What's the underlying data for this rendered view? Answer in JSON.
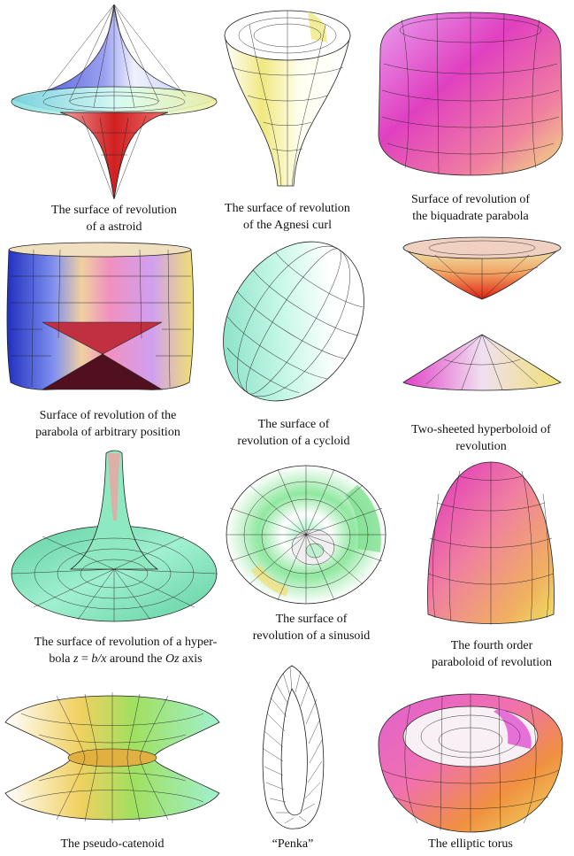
{
  "captions": {
    "astroid": {
      "line1": "The surface of revolution",
      "line2": "of a astroid"
    },
    "agnesi": {
      "line1": "The surface of revolution",
      "line2": "of the Agnesi curl"
    },
    "biquad": {
      "line1": "Surface of revolution of",
      "line2": "the biquadrate parabola"
    },
    "parabola": {
      "line1": "Surface of revolution of the",
      "line2": "parabola of arbitrary position"
    },
    "cycloid": {
      "line1": "The surface of",
      "line2": "revolution of a cycloid"
    },
    "hyperboloid": {
      "line1": "Two-sheeted hyperboloid of",
      "line2": "revolution"
    },
    "hyperbola": {
      "line1": "The surface of revolution of a hyper-",
      "line2a": "bola ",
      "z": "z",
      "eq": " = ",
      "bx": "b/x",
      "mid": " around the ",
      "oz": "Oz",
      "end": " axis"
    },
    "sinusoid": {
      "line1": "The surface of",
      "line2": "revolution of a sinusoid"
    },
    "fourth": {
      "line1": "The fourth order",
      "line2": "paraboloid of revolution"
    },
    "catenoid": {
      "line1": "The pseudo-catenoid"
    },
    "penka": {
      "line1": "“Penka”"
    },
    "torus": {
      "line1": "The elliptic torus"
    }
  },
  "colors": {
    "magenta": "#e040c8",
    "pink": "#f27ab8",
    "cyan": "#9ee8dc",
    "yellow": "#f0e88c",
    "red": "#e03020",
    "blue": "#3040d0",
    "green": "#7ee0a0",
    "orange": "#f0a040",
    "mesh": "#222222"
  }
}
